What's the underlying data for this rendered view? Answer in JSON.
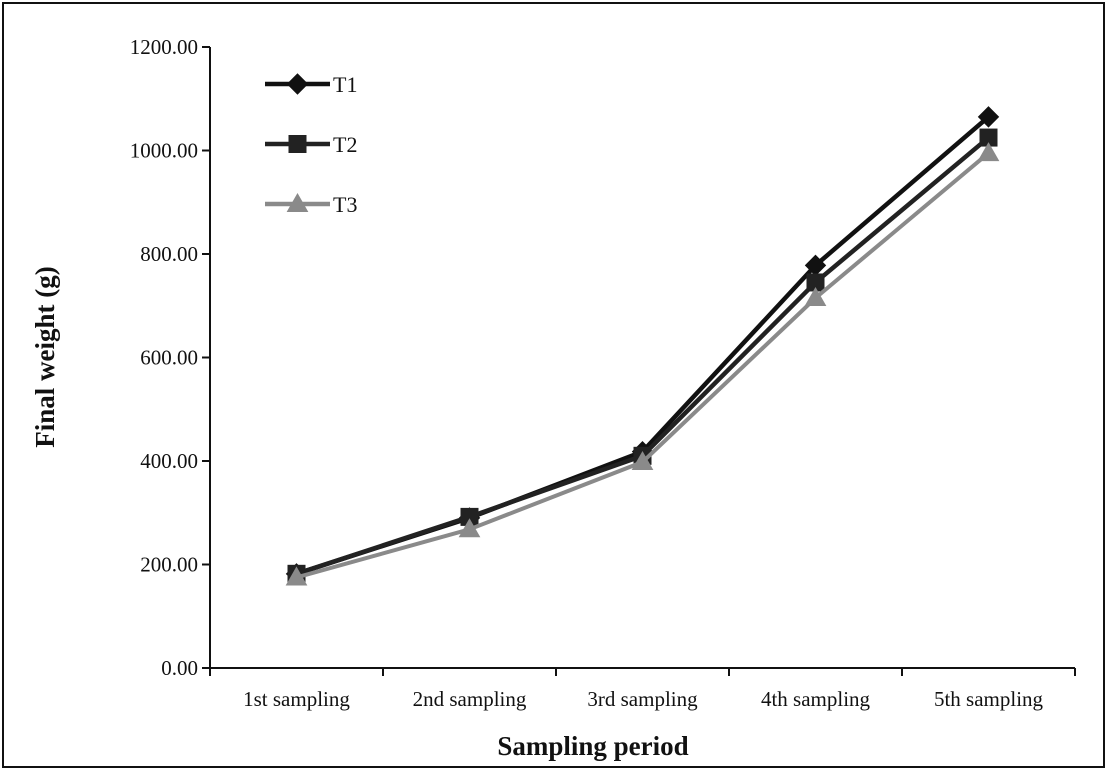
{
  "chart_data": {
    "type": "line",
    "title": "",
    "xlabel": "Sampling period",
    "ylabel": "Final weight (g)",
    "categories": [
      "1st sampling",
      "2nd sampling",
      "3rd sampling",
      "4th sampling",
      "5th sampling"
    ],
    "ylim": [
      0,
      1200
    ],
    "yticks": [
      "0.00",
      "200.00",
      "400.00",
      "600.00",
      "800.00",
      "1000.00",
      "1200.00"
    ],
    "grid": false,
    "legend": "top-left",
    "series": [
      {
        "name": "T1",
        "marker": "diamond",
        "color": "#111111",
        "values": [
          182,
          290,
          418,
          778,
          1065
        ]
      },
      {
        "name": "T2",
        "marker": "square",
        "color": "#222222",
        "values": [
          182,
          292,
          410,
          745,
          1025
        ]
      },
      {
        "name": "T3",
        "marker": "triangle",
        "color": "#8a8a8a",
        "values": [
          175,
          268,
          398,
          715,
          995
        ]
      }
    ]
  }
}
